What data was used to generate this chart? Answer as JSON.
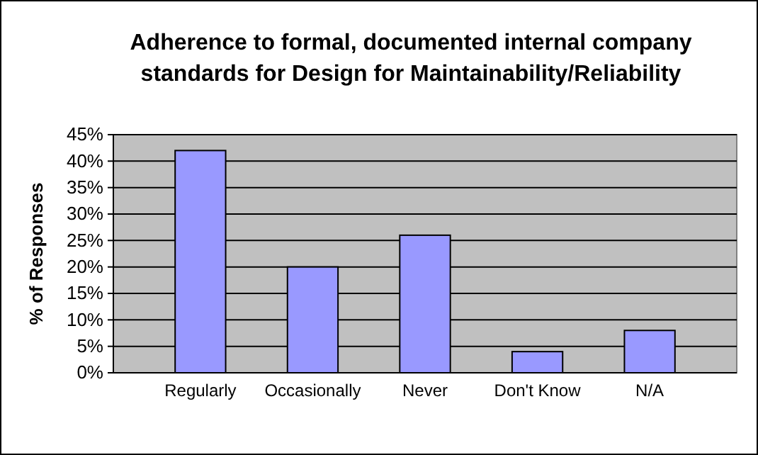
{
  "chart_data": {
    "type": "bar",
    "title": "Adherence to formal, documented internal company standards for Design for Maintainability/Reliability",
    "ylabel": "% of Responses",
    "categories": [
      "Regularly",
      "Occasionally",
      "Never",
      "Don't Know",
      "N/A"
    ],
    "values": [
      42,
      20,
      26,
      4,
      8
    ],
    "color": "#9999ff",
    "ylim": [
      0,
      45
    ],
    "yticks": [
      {
        "value": 0,
        "label": "0%"
      },
      {
        "value": 5,
        "label": "5%"
      },
      {
        "value": 10,
        "label": "10%"
      },
      {
        "value": 15,
        "label": "15%"
      },
      {
        "value": 20,
        "label": "20%"
      },
      {
        "value": 25,
        "label": "25%"
      },
      {
        "value": 30,
        "label": "30%"
      },
      {
        "value": 35,
        "label": "35%"
      },
      {
        "value": 40,
        "label": "40%"
      },
      {
        "value": 45,
        "label": "45%"
      }
    ],
    "grid": "y"
  }
}
